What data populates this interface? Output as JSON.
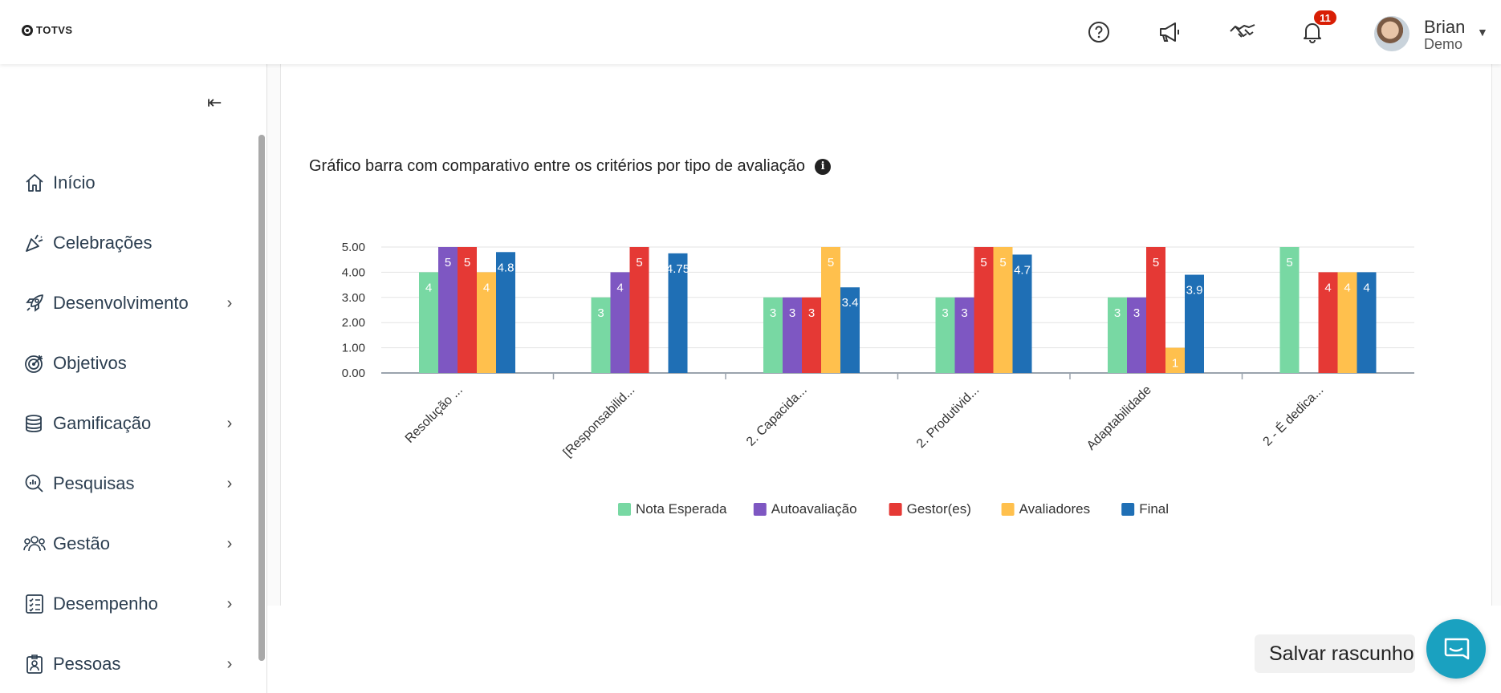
{
  "topbar": {
    "logo_text": "TOTVS",
    "help_icon": "help-circle-icon",
    "announce_icon": "megaphone-icon",
    "handshake_icon": "handshake-icon",
    "bell_icon": "bell-icon",
    "notification_count": "11",
    "user": {
      "name": "Brian",
      "sub": "Demo"
    }
  },
  "sidebar": {
    "items": [
      {
        "label": "Início",
        "icon": "home-icon",
        "has_children": false
      },
      {
        "label": "Celebrações",
        "icon": "party-popper-icon",
        "has_children": false
      },
      {
        "label": "Desenvolvimento",
        "icon": "rocket-icon",
        "has_children": true
      },
      {
        "label": "Objetivos",
        "icon": "target-icon",
        "has_children": false
      },
      {
        "label": "Gamificação",
        "icon": "coins-icon",
        "has_children": true
      },
      {
        "label": "Pesquisas",
        "icon": "search-chart-icon",
        "has_children": true
      },
      {
        "label": "Gestão",
        "icon": "people-icon",
        "has_children": true
      },
      {
        "label": "Desempenho",
        "icon": "checklist-icon",
        "has_children": true
      },
      {
        "label": "Pessoas",
        "icon": "id-badge-icon",
        "has_children": true
      }
    ]
  },
  "main": {
    "chart_title": "Gráfico barra com comparativo entre os critérios por tipo de avaliação",
    "save_label": "Salvar rascunho"
  },
  "colors": {
    "nota_esperada": "#78d8a3",
    "autoavaliacao": "#7e57c2",
    "gestor": "#e53935",
    "avaliadores": "#ffc04d",
    "final": "#1f6fb5",
    "badge": "#d81e05",
    "chat": "#1aa1c0"
  },
  "chart_data": {
    "type": "bar",
    "title": "Gráfico barra com comparativo entre os critérios por tipo de avaliação",
    "categories": [
      "Resolução ...",
      "[Responsabilid...",
      "2. Capacida...",
      "2. Produtivid...",
      "Adaptabilidade",
      "2 - É dedica..."
    ],
    "ylim": [
      0,
      5
    ],
    "yticks": [
      "0.00",
      "1.00",
      "2.00",
      "3.00",
      "4.00",
      "5.00"
    ],
    "legend_position": "bottom",
    "series": [
      {
        "name": "Nota Esperada",
        "values": [
          4,
          3,
          3,
          3,
          3,
          5
        ],
        "labels": [
          "4",
          "3",
          "3",
          "3",
          "3",
          "5"
        ]
      },
      {
        "name": "Autoavaliação",
        "values": [
          5,
          4,
          3,
          3,
          3,
          null
        ],
        "labels": [
          "5",
          "4",
          "3",
          "3",
          "3",
          ""
        ]
      },
      {
        "name": "Gestor(es)",
        "values": [
          5,
          5,
          3,
          5,
          5,
          4
        ],
        "labels": [
          "5",
          "5",
          "3",
          "5",
          "5",
          "4"
        ]
      },
      {
        "name": "Avaliadores",
        "values": [
          4,
          null,
          5,
          5,
          1,
          4
        ],
        "labels": [
          "4",
          "",
          "5",
          "5",
          "1",
          "4"
        ]
      },
      {
        "name": "Final",
        "values": [
          4.8,
          4.75,
          3.4,
          4.7,
          3.9,
          4
        ],
        "labels": [
          "4.8",
          "4.75",
          "3.4",
          "4.7",
          "3.9",
          "4"
        ]
      }
    ]
  }
}
